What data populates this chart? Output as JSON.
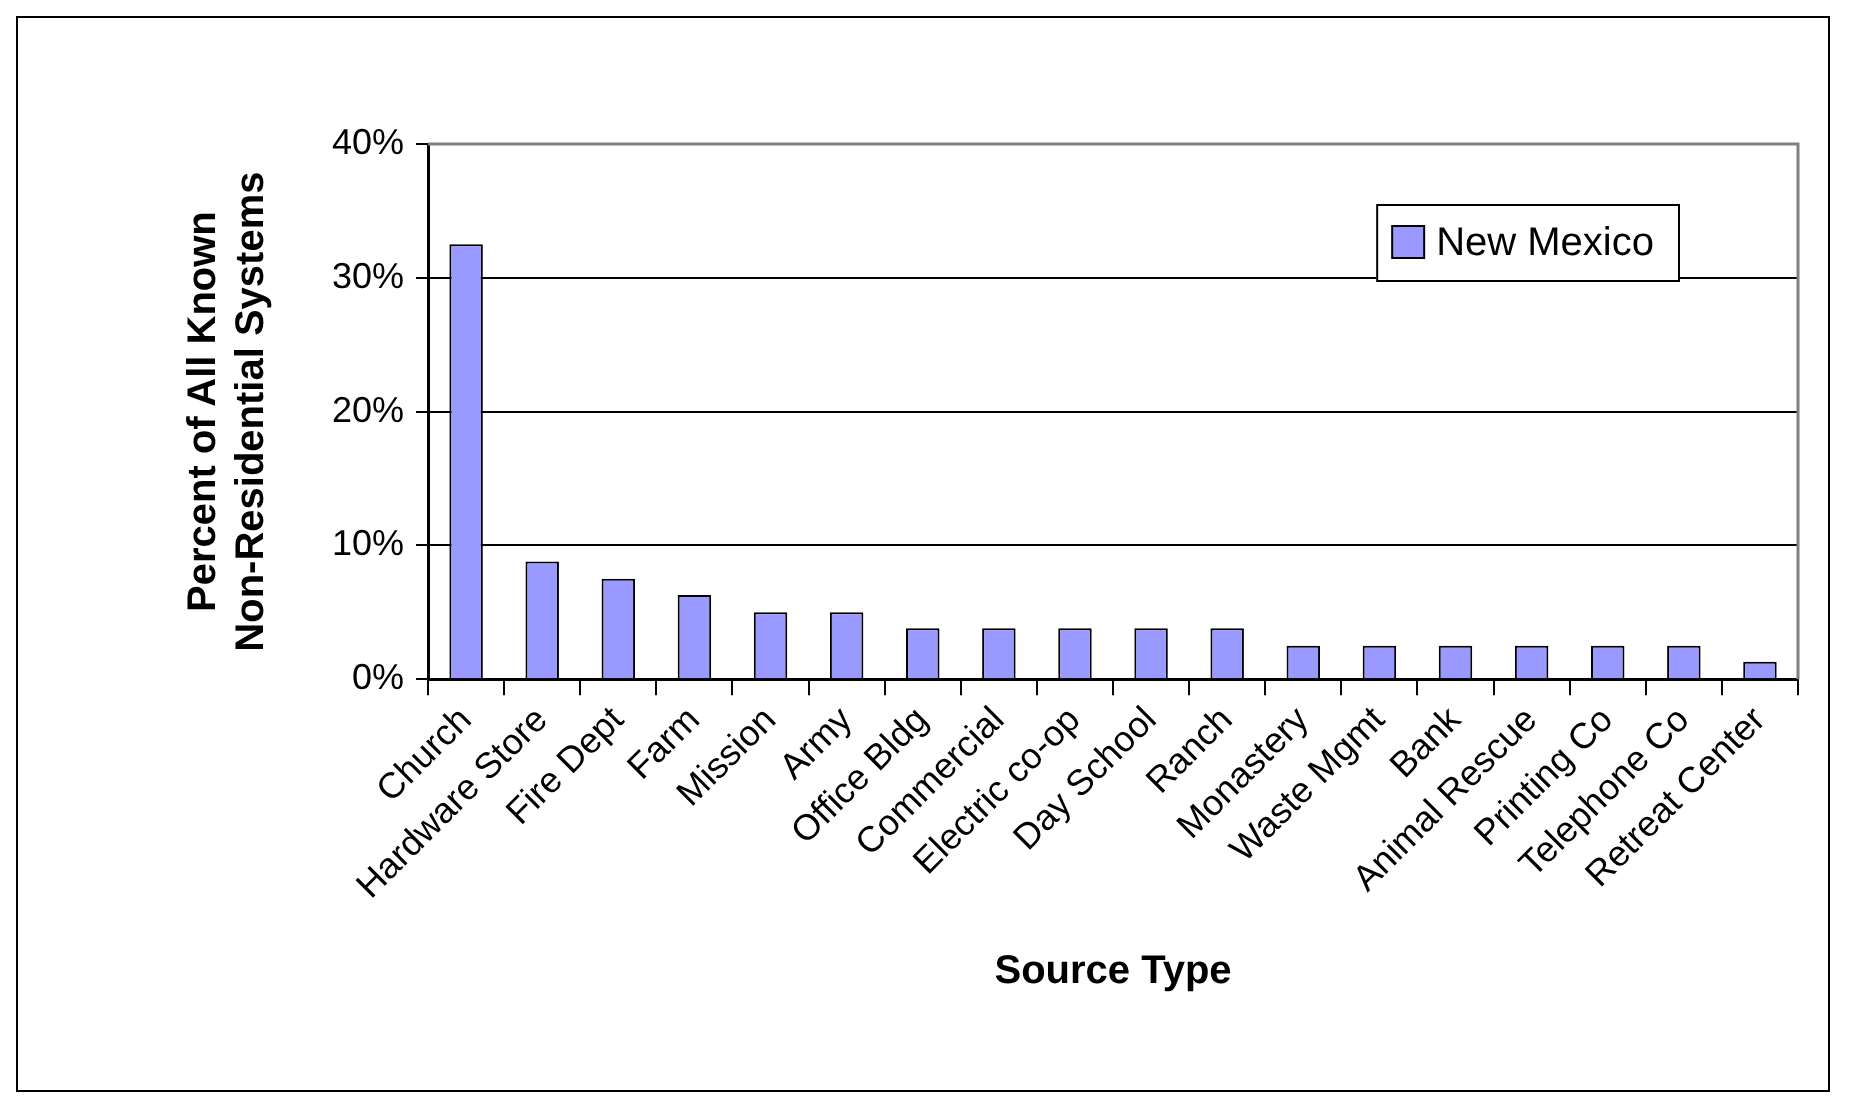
{
  "chart_data": {
    "type": "bar",
    "xlabel": "Source Type",
    "ylabel": "Percent of All Known Non-Residential Systems",
    "categories": [
      "Church",
      "Hardware Store",
      "Fire Dept",
      "Farm",
      "Mission",
      "Army",
      "Office Bldg",
      "Commercial",
      "Electric co-op",
      "Day School",
      "Ranch",
      "Monastery",
      "Waste Mgmt",
      "Bank",
      "Animal Rescue",
      "Printing Co",
      "Telephone Co",
      "Retreat Center"
    ],
    "series": [
      {
        "name": "New Mexico",
        "color": "#9999ff",
        "values": [
          32.5,
          8.8,
          7.5,
          6.3,
          5,
          5,
          3.8,
          3.8,
          3.8,
          3.8,
          3.8,
          2.5,
          2.5,
          2.5,
          2.5,
          2.5,
          2.5,
          1.3
        ]
      }
    ],
    "ylim": [
      0,
      40
    ],
    "yticks": [
      {
        "value": 0,
        "label": "0%"
      },
      {
        "value": 10,
        "label": "10%"
      },
      {
        "value": 20,
        "label": "20%"
      },
      {
        "value": 30,
        "label": "30%"
      },
      {
        "value": 40,
        "label": "40%"
      }
    ],
    "grid": "y",
    "legend": "top right"
  }
}
